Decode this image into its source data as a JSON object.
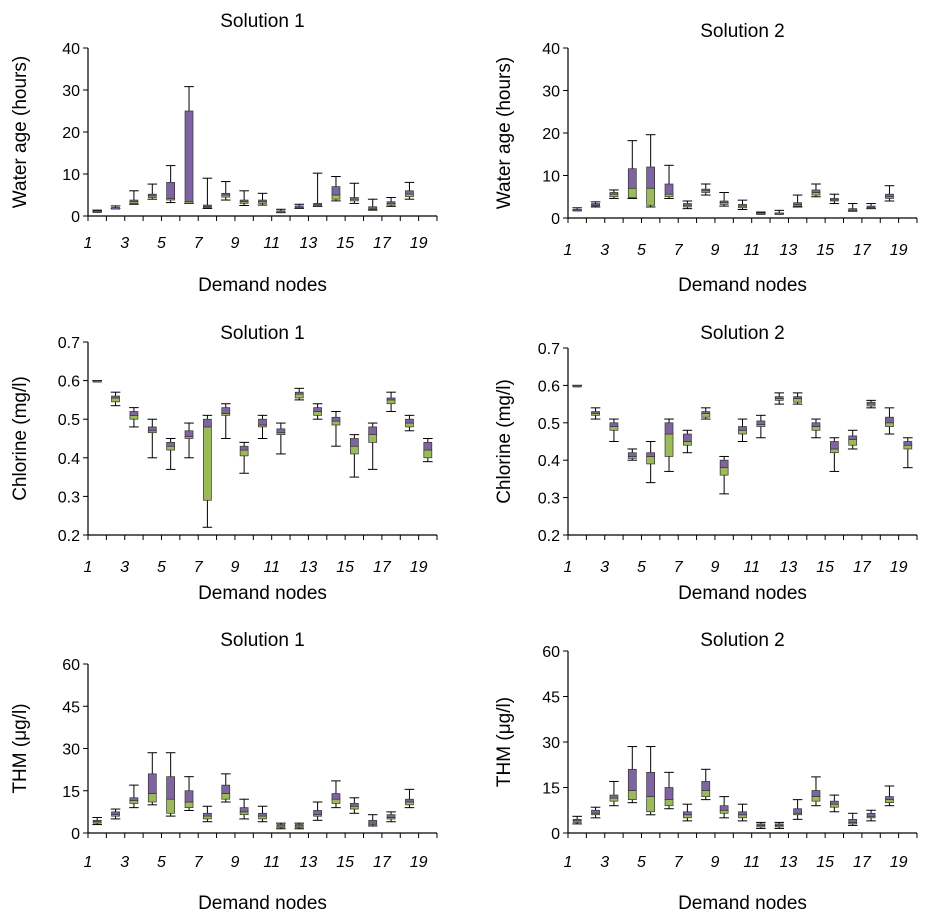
{
  "colors": {
    "upper_box": "#8064a2",
    "lower_box": "#9bbb59",
    "whisker": "#000000",
    "axis": "#000000"
  },
  "chart_data": [
    {
      "type": "box",
      "title": "Solution 1",
      "xlabel": "Demand nodes",
      "ylabel": "Water age (hours)",
      "ylim": [
        0,
        40
      ],
      "yticks": [
        "0",
        "10",
        "20",
        "30",
        "40"
      ],
      "x": [
        1,
        2,
        3,
        4,
        5,
        6,
        7,
        8,
        9,
        10,
        11,
        12,
        13,
        14,
        15,
        16,
        17,
        18,
        19
      ],
      "xticklabels": [
        "1",
        "3",
        "5",
        "7",
        "9",
        "11",
        "13",
        "15",
        "17",
        "19"
      ],
      "min": [
        1.0,
        1.8,
        2.8,
        4.0,
        3.2,
        3.0,
        1.8,
        3.8,
        2.5,
        2.6,
        0.8,
        1.8,
        2.3,
        3.6,
        3.0,
        1.4,
        2.3,
        4.0,
        null
      ],
      "q1": [
        1.0,
        1.8,
        3.0,
        4.4,
        3.8,
        3.0,
        2.0,
        4.5,
        3.0,
        3.0,
        1.0,
        2.0,
        2.4,
        4.0,
        3.6,
        1.6,
        2.6,
        4.6,
        null
      ],
      "median": [
        1.2,
        2.0,
        3.4,
        4.8,
        4.2,
        3.4,
        2.4,
        5.0,
        3.4,
        3.4,
        1.2,
        2.2,
        2.8,
        5.0,
        4.0,
        2.0,
        3.0,
        5.2,
        null
      ],
      "q3": [
        1.2,
        2.0,
        3.8,
        5.2,
        8.0,
        25.0,
        2.6,
        5.4,
        3.8,
        3.8,
        1.2,
        2.4,
        3.0,
        7.0,
        4.4,
        2.2,
        3.4,
        6.0,
        null
      ],
      "max": [
        1.4,
        2.4,
        6.0,
        7.6,
        12.0,
        30.8,
        9.0,
        8.2,
        6.0,
        5.4,
        1.6,
        2.8,
        10.2,
        9.4,
        7.8,
        4.0,
        4.4,
        8.0,
        null
      ]
    },
    {
      "type": "box",
      "title": "Solution 2",
      "xlabel": "Demand nodes",
      "ylabel": "Water age (hours)",
      "ylim": [
        0,
        40
      ],
      "yticks": [
        "0",
        "10",
        "20",
        "30",
        "40"
      ],
      "x": [
        1,
        2,
        3,
        4,
        5,
        6,
        7,
        8,
        9,
        10,
        11,
        12,
        13,
        14,
        15,
        16,
        17,
        18,
        19
      ],
      "xticklabels": [
        "1",
        "3",
        "5",
        "7",
        "9",
        "11",
        "13",
        "15",
        "17",
        "19"
      ],
      "min": [
        1.8,
        2.6,
        4.6,
        4.6,
        2.6,
        4.6,
        2.2,
        5.4,
        2.8,
        2.0,
        1.0,
        1.0,
        2.6,
        5.0,
        3.4,
        1.6,
        2.2,
        4.0,
        null
      ],
      "q1": [
        1.8,
        3.0,
        5.0,
        4.8,
        3.0,
        5.0,
        2.6,
        6.0,
        3.2,
        2.4,
        1.0,
        1.0,
        2.8,
        5.4,
        4.0,
        1.8,
        2.4,
        4.6,
        null
      ],
      "median": [
        2.0,
        3.2,
        5.6,
        7.0,
        7.0,
        5.6,
        3.0,
        6.4,
        3.6,
        2.8,
        1.2,
        1.2,
        3.2,
        6.0,
        4.4,
        2.0,
        2.6,
        5.0,
        null
      ],
      "q3": [
        2.0,
        3.4,
        6.0,
        11.6,
        12.0,
        8.0,
        3.4,
        6.8,
        4.0,
        3.2,
        1.2,
        1.2,
        3.6,
        6.6,
        4.6,
        2.2,
        2.8,
        5.6,
        null
      ],
      "max": [
        2.4,
        3.8,
        6.6,
        18.2,
        19.6,
        12.4,
        4.0,
        8.0,
        6.0,
        4.2,
        1.4,
        1.8,
        5.4,
        8.0,
        5.6,
        3.4,
        3.4,
        7.6,
        null
      ]
    },
    {
      "type": "box",
      "title": "Solution 1",
      "xlabel": "Demand nodes",
      "ylabel": "Chlorine (mg/l)",
      "ylim": [
        0.2,
        0.7
      ],
      "yticks": [
        "0.2",
        "0.3",
        "0.4",
        "0.5",
        "0.6",
        "0.7"
      ],
      "x": [
        1,
        2,
        3,
        4,
        5,
        6,
        7,
        8,
        9,
        10,
        11,
        12,
        13,
        14,
        15,
        16,
        17,
        18,
        19
      ],
      "xticklabels": [
        "1",
        "3",
        "5",
        "7",
        "9",
        "11",
        "13",
        "15",
        "17",
        "19"
      ],
      "min": [
        0.6,
        0.535,
        0.48,
        0.4,
        0.37,
        0.4,
        0.22,
        0.45,
        0.36,
        0.45,
        0.41,
        0.55,
        0.5,
        0.43,
        0.35,
        0.37,
        0.52,
        0.47,
        0.39
      ],
      "q1": [
        0.6,
        0.545,
        0.5,
        0.465,
        0.42,
        0.45,
        0.29,
        0.51,
        0.405,
        0.48,
        0.46,
        0.555,
        0.51,
        0.485,
        0.41,
        0.44,
        0.54,
        0.48,
        0.4
      ],
      "median": [
        0.6,
        0.555,
        0.51,
        0.47,
        0.43,
        0.455,
        0.48,
        0.515,
        0.42,
        0.485,
        0.465,
        0.565,
        0.52,
        0.495,
        0.43,
        0.46,
        0.55,
        0.49,
        0.42
      ],
      "q3": [
        0.6,
        0.56,
        0.52,
        0.48,
        0.44,
        0.47,
        0.5,
        0.53,
        0.43,
        0.5,
        0.475,
        0.57,
        0.53,
        0.505,
        0.45,
        0.48,
        0.555,
        0.5,
        0.44
      ],
      "max": [
        0.6,
        0.57,
        0.53,
        0.5,
        0.45,
        0.49,
        0.51,
        0.54,
        0.44,
        0.51,
        0.49,
        0.58,
        0.54,
        0.52,
        0.46,
        0.49,
        0.57,
        0.51,
        0.45
      ]
    },
    {
      "type": "box",
      "title": "Solution 2",
      "xlabel": "Demand nodes",
      "ylabel": "Chlorine (mg/l)",
      "ylim": [
        0.2,
        0.7
      ],
      "yticks": [
        "0.2",
        "0.3",
        "0.4",
        "0.5",
        "0.6",
        "0.7"
      ],
      "x": [
        1,
        2,
        3,
        4,
        5,
        6,
        7,
        8,
        9,
        10,
        11,
        12,
        13,
        14,
        15,
        16,
        17,
        18,
        19
      ],
      "xticklabels": [
        "1",
        "3",
        "5",
        "7",
        "9",
        "11",
        "13",
        "15",
        "17",
        "19"
      ],
      "min": [
        0.6,
        0.51,
        0.45,
        0.4,
        0.34,
        0.37,
        0.42,
        0.51,
        0.31,
        0.45,
        0.46,
        0.55,
        0.55,
        0.46,
        0.37,
        0.43,
        0.54,
        0.47,
        0.38
      ],
      "q1": [
        0.6,
        0.52,
        0.48,
        0.405,
        0.39,
        0.41,
        0.44,
        0.515,
        0.36,
        0.47,
        0.49,
        0.56,
        0.555,
        0.48,
        0.42,
        0.44,
        0.545,
        0.49,
        0.43
      ],
      "median": [
        0.6,
        0.525,
        0.49,
        0.41,
        0.41,
        0.47,
        0.45,
        0.525,
        0.38,
        0.48,
        0.495,
        0.565,
        0.565,
        0.49,
        0.43,
        0.455,
        0.55,
        0.5,
        0.44
      ],
      "q3": [
        0.6,
        0.53,
        0.5,
        0.42,
        0.42,
        0.5,
        0.47,
        0.53,
        0.4,
        0.49,
        0.505,
        0.57,
        0.57,
        0.5,
        0.45,
        0.465,
        0.555,
        0.515,
        0.45
      ],
      "max": [
        0.6,
        0.54,
        0.51,
        0.43,
        0.45,
        0.51,
        0.48,
        0.54,
        0.41,
        0.51,
        0.52,
        0.58,
        0.58,
        0.51,
        0.46,
        0.48,
        0.56,
        0.54,
        0.46
      ]
    },
    {
      "type": "box",
      "title": "Solution 1",
      "xlabel": "Demand nodes",
      "ylabel": "THM (μg/l)",
      "ylim": [
        0,
        60
      ],
      "yticks": [
        "0",
        "15",
        "30",
        "45",
        "60"
      ],
      "x": [
        1,
        2,
        3,
        4,
        5,
        6,
        7,
        8,
        9,
        10,
        11,
        12,
        13,
        14,
        15,
        16,
        17,
        18,
        19
      ],
      "xticklabels": [
        "1",
        "3",
        "5",
        "7",
        "9",
        "11",
        "13",
        "15",
        "17",
        "19"
      ],
      "min": [
        3.0,
        5.0,
        9.0,
        10.0,
        6.0,
        8.0,
        4.0,
        11.0,
        5.0,
        4.0,
        1.5,
        1.5,
        4.5,
        9.0,
        7.0,
        2.5,
        4.0,
        9.0,
        null
      ],
      "q1": [
        3.5,
        6.0,
        10.5,
        11.0,
        7.0,
        9.0,
        5.0,
        12.0,
        6.5,
        5.0,
        2.0,
        2.0,
        6.0,
        10.5,
        8.5,
        3.0,
        5.0,
        10.0,
        null
      ],
      "median": [
        4.0,
        6.5,
        11.5,
        14.0,
        12.0,
        11.0,
        6.0,
        14.0,
        7.5,
        6.0,
        2.5,
        2.5,
        6.5,
        12.0,
        9.5,
        3.5,
        5.5,
        11.0,
        null
      ],
      "q3": [
        4.5,
        7.5,
        12.5,
        21.0,
        20.0,
        15.0,
        7.0,
        17.0,
        9.0,
        7.0,
        3.0,
        3.0,
        8.0,
        14.0,
        10.5,
        4.5,
        6.5,
        12.0,
        null
      ],
      "max": [
        5.5,
        8.5,
        17.0,
        28.5,
        28.5,
        20.0,
        9.5,
        21.0,
        12.0,
        9.5,
        3.5,
        3.5,
        11.0,
        18.5,
        12.5,
        6.5,
        7.5,
        15.5,
        null
      ]
    },
    {
      "type": "box",
      "title": "Solution 2",
      "xlabel": "Demand nodes",
      "ylabel": "THM (μg/l)",
      "ylim": [
        0,
        60
      ],
      "yticks": [
        "0",
        "15",
        "30",
        "45",
        "60"
      ],
      "x": [
        1,
        2,
        3,
        4,
        5,
        6,
        7,
        8,
        9,
        10,
        11,
        12,
        13,
        14,
        15,
        16,
        17,
        18,
        19
      ],
      "xticklabels": [
        "1",
        "3",
        "5",
        "7",
        "9",
        "11",
        "13",
        "15",
        "17",
        "19"
      ],
      "min": [
        3.0,
        5.0,
        9.0,
        10.0,
        6.0,
        8.0,
        4.0,
        11.0,
        5.0,
        4.0,
        1.5,
        1.5,
        4.5,
        9.0,
        7.0,
        2.5,
        4.0,
        9.0,
        null
      ],
      "q1": [
        3.5,
        6.0,
        10.5,
        11.0,
        7.0,
        9.0,
        5.0,
        12.0,
        6.5,
        5.0,
        2.0,
        2.0,
        6.0,
        10.5,
        8.5,
        3.0,
        5.0,
        10.0,
        null
      ],
      "median": [
        4.0,
        6.5,
        11.5,
        14.0,
        12.0,
        11.0,
        6.0,
        14.0,
        7.5,
        6.0,
        2.5,
        2.5,
        6.5,
        12.0,
        9.5,
        3.5,
        5.5,
        11.0,
        null
      ],
      "q3": [
        4.5,
        7.5,
        12.5,
        21.0,
        20.0,
        15.0,
        7.0,
        17.0,
        9.0,
        7.0,
        3.0,
        3.0,
        8.0,
        14.0,
        10.5,
        4.5,
        6.5,
        12.0,
        null
      ],
      "max": [
        5.5,
        8.5,
        17.0,
        28.5,
        28.5,
        20.0,
        9.5,
        21.0,
        12.0,
        9.5,
        3.5,
        3.5,
        11.0,
        18.5,
        12.5,
        6.5,
        7.5,
        15.5,
        null
      ]
    }
  ]
}
